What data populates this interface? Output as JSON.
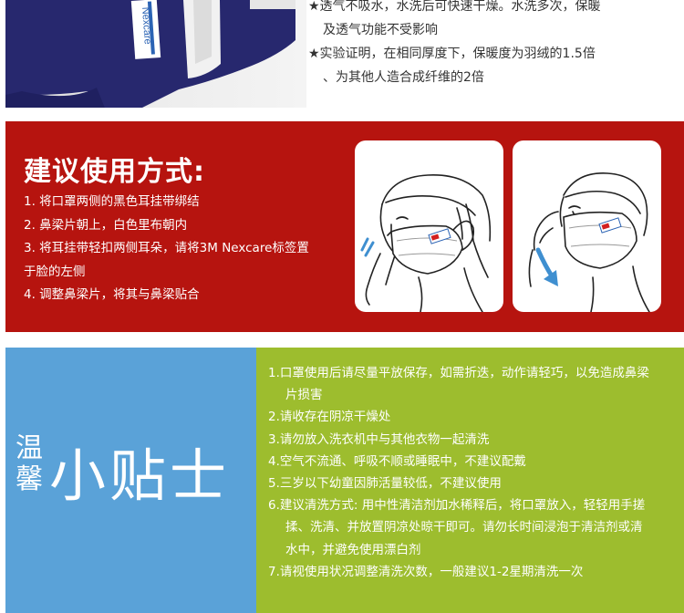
{
  "top": {
    "lines": [
      "★透气不吸水，水洗后可快速干燥。水洗多次，保暖",
      "及透气功能不受影响",
      "★实验证明，在相同厚度下，保暖度为羽绒的1.5倍",
      "、为其他人造合成纤维的2倍"
    ],
    "product_label": "Nexcare"
  },
  "usage": {
    "title": "建议使用方式:",
    "steps": [
      "1. 将口罩两侧的黑色耳挂带绑结",
      "2. 鼻梁片朝上，白色里布朝内",
      "3. 将耳挂带轻扣两侧耳朵，请将3M Nexcare标签置",
      "于脸的左侧",
      "4. 调整鼻梁片，将其与鼻梁贴合"
    ]
  },
  "tips": {
    "title_small": [
      "温",
      "馨"
    ],
    "title_big": "小贴士",
    "lines": [
      "1.口罩使用后请尽量平放保存，如需折迭，动作请轻巧，以免造成鼻梁",
      "片损害",
      "2.请收存在阴凉干燥处",
      "3.请勿放入洗衣机中与其他衣物一起清洗",
      "4.空气不流通、呼吸不顺或睡眠中，不建议配戴",
      "5.三岁以下幼童因肺活量较低，不建议使用",
      "6.建议清洗方式: 用中性清洁剂加水稀释后，将口罩放入，轻轻用手搓",
      "揉、洗清、并放置阴凉处晾干即可。请勿长时间浸泡于清洁剂或清",
      "水中，并避免使用漂白剂",
      "7.请视使用状况调整清洗次数，一般建议1-2星期清洗一次"
    ]
  },
  "colors": {
    "red_panel": "#b6140f",
    "blue_panel": "#5aa2d8",
    "green_panel": "#9dbd2e",
    "mask_navy": "#27286e"
  }
}
